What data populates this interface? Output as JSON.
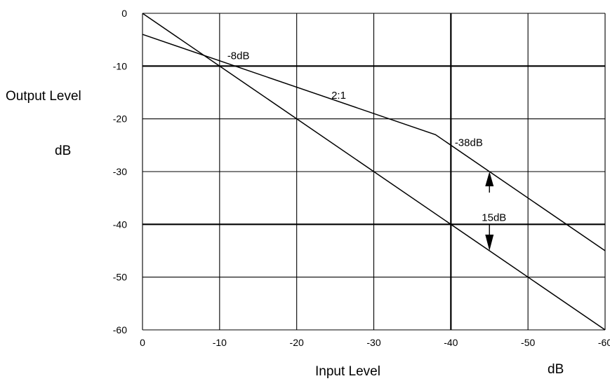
{
  "chart_data": {
    "type": "line",
    "xlabel": "Input Level",
    "x_unit": "dB",
    "ylabel": "Output Level",
    "y_unit": "dB",
    "xlim": [
      0,
      -60
    ],
    "ylim": [
      -60,
      0
    ],
    "x_ticks": [
      "0",
      "-10",
      "-20",
      "-30",
      "-40",
      "-50",
      "-60"
    ],
    "y_ticks": [
      "0",
      "-10",
      "-20",
      "-30",
      "-40",
      "-50",
      "-60"
    ],
    "grid": true,
    "series": [
      {
        "x": [
          0,
          -60
        ],
        "y": [
          0,
          -60
        ]
      },
      {
        "x": [
          0,
          -38,
          -60
        ],
        "y": [
          -4,
          -23,
          -45
        ]
      }
    ],
    "annotations": [
      {
        "text": "-8dB",
        "x": -11,
        "y": -8
      },
      {
        "text": "2:1",
        "x": -24.5,
        "y": -15.5
      },
      {
        "text": "-38dB",
        "x": -40.5,
        "y": -24.5
      },
      {
        "text": "15dB",
        "x": -44,
        "y": -38.7
      }
    ],
    "difference_arrows": {
      "x": -45,
      "upper_y": -30,
      "lower_y": -45
    }
  }
}
